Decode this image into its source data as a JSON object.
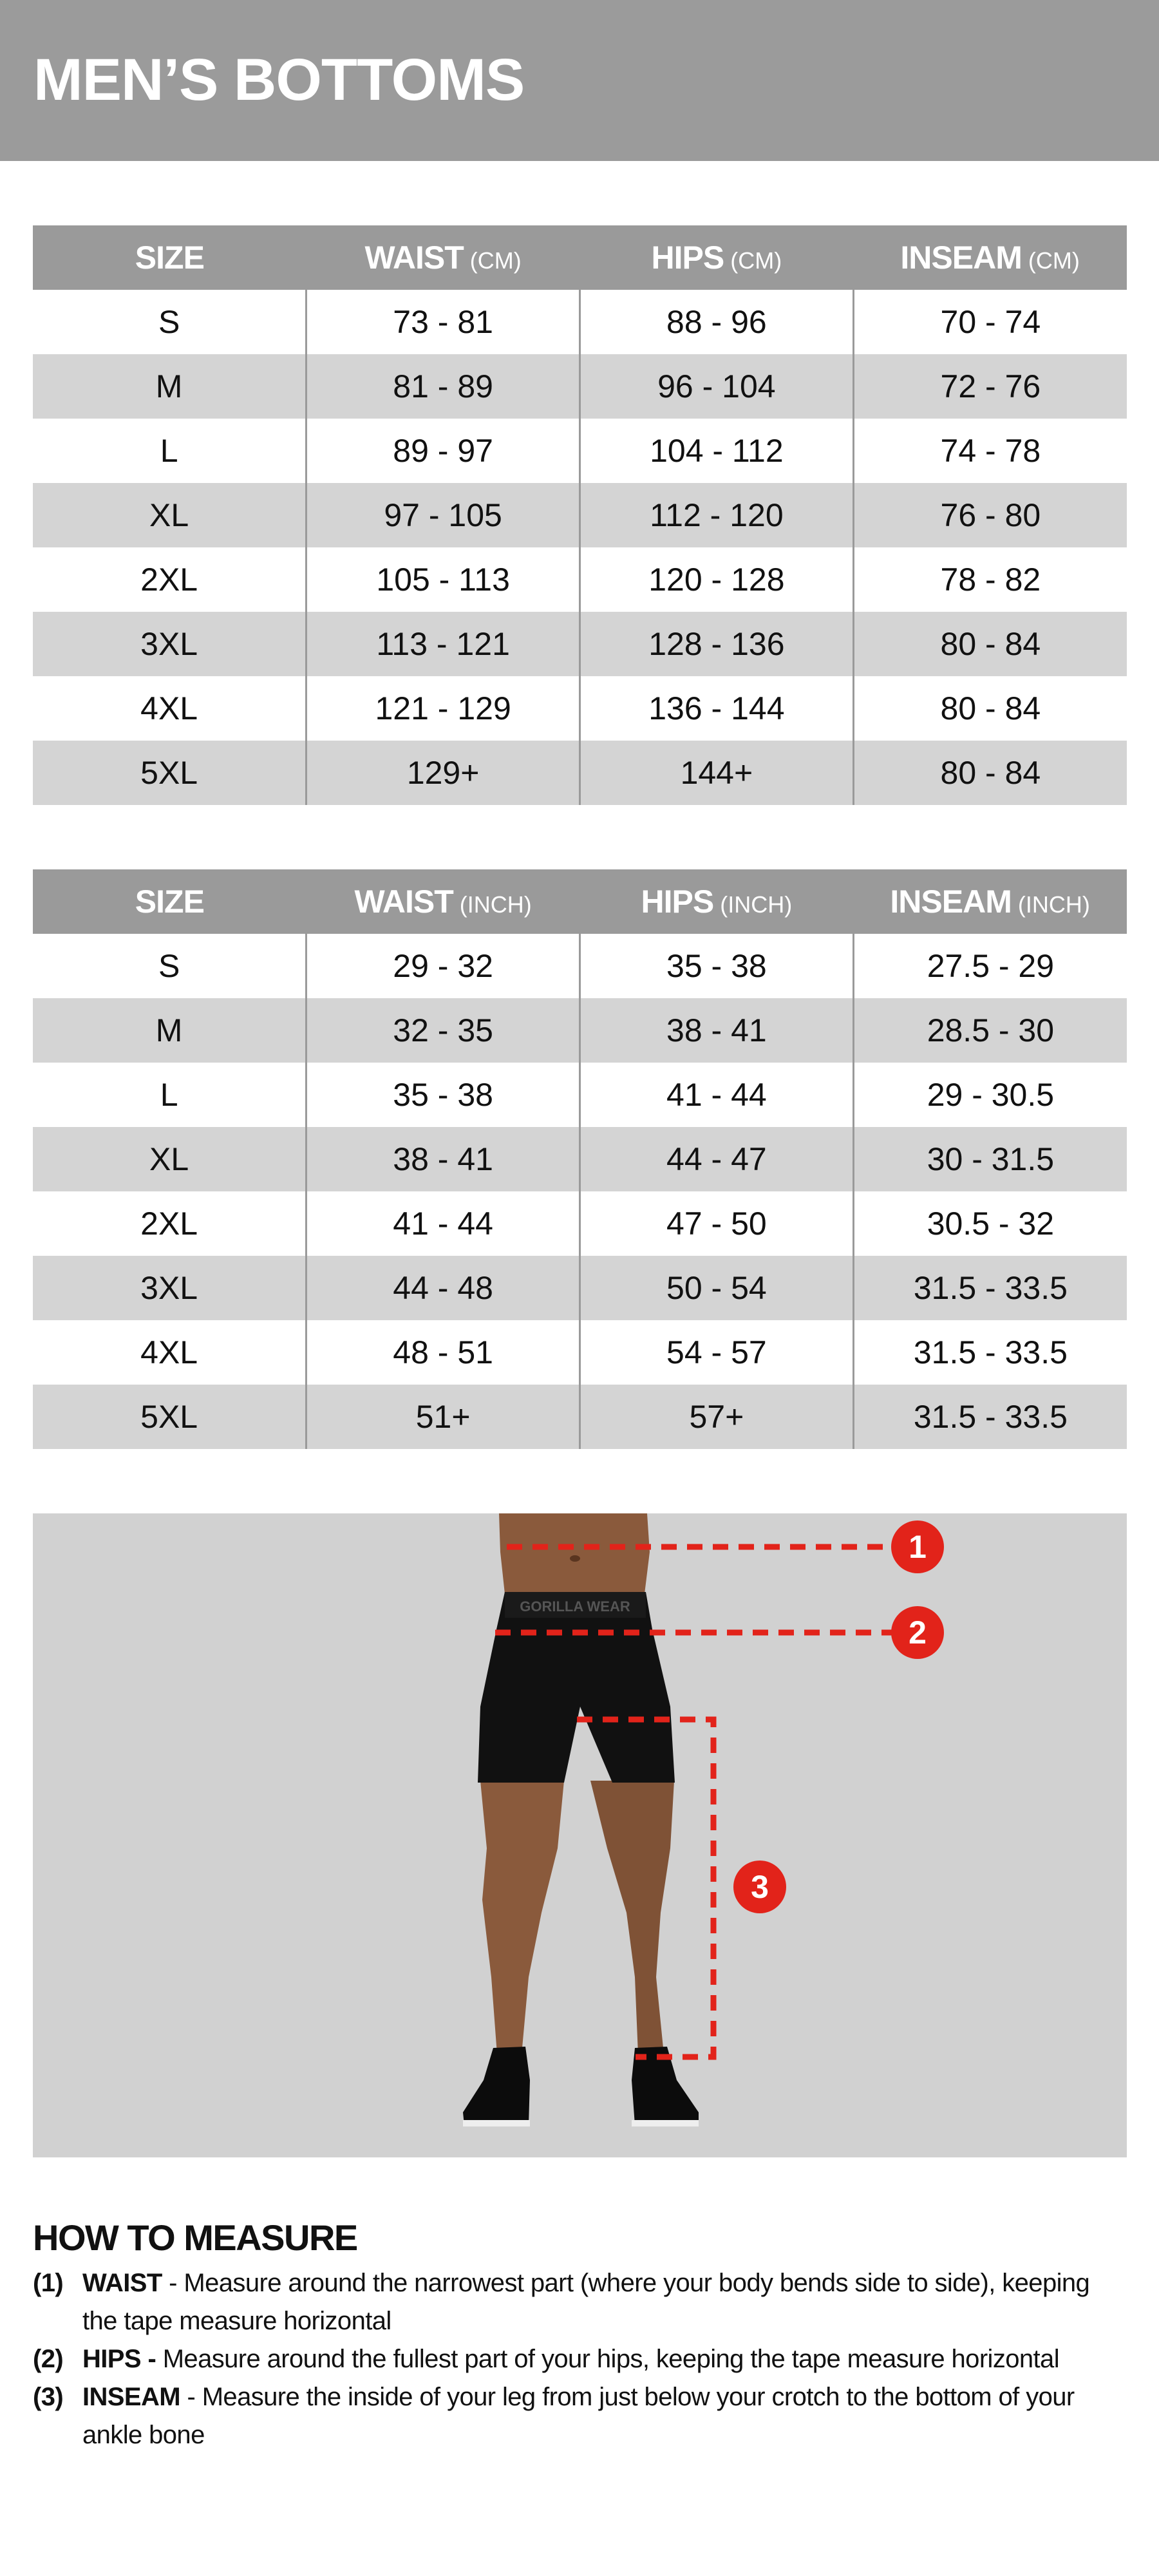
{
  "title": "MEN’S BOTTOMS",
  "tables": [
    {
      "headers": [
        {
          "label": "SIZE",
          "unit": ""
        },
        {
          "label": "WAIST",
          "unit": " (CM)"
        },
        {
          "label": "HIPS",
          "unit": " (CM)"
        },
        {
          "label": "INSEAM",
          "unit": " (CM)"
        }
      ],
      "rows": [
        [
          "S",
          "73 - 81",
          "88 - 96",
          "70 - 74"
        ],
        [
          "M",
          "81 - 89",
          "96 - 104",
          "72 - 76"
        ],
        [
          "L",
          "89 - 97",
          "104 - 112",
          "74 - 78"
        ],
        [
          "XL",
          "97 - 105",
          "112 - 120",
          "76 - 80"
        ],
        [
          "2XL",
          "105 - 113",
          "120 - 128",
          "78 - 82"
        ],
        [
          "3XL",
          "113 - 121",
          "128 - 136",
          "80 - 84"
        ],
        [
          "4XL",
          "121 - 129",
          "136 - 144",
          "80 - 84"
        ],
        [
          "5XL",
          "129+",
          "144+",
          "80 - 84"
        ]
      ]
    },
    {
      "headers": [
        {
          "label": "SIZE",
          "unit": ""
        },
        {
          "label": "WAIST",
          "unit": " (INCH)"
        },
        {
          "label": "HIPS",
          "unit": " (INCH)"
        },
        {
          "label": "INSEAM",
          "unit": " (INCH)"
        }
      ],
      "rows": [
        [
          "S",
          "29 - 32",
          "35 - 38",
          "27.5 - 29"
        ],
        [
          "M",
          "32 - 35",
          "38 - 41",
          "28.5 - 30"
        ],
        [
          "L",
          "35 - 38",
          "41 - 44",
          "29 - 30.5"
        ],
        [
          "XL",
          "38 - 41",
          "44 - 47",
          "30 - 31.5"
        ],
        [
          "2XL",
          "41 - 44",
          "47 - 50",
          "30.5 - 32"
        ],
        [
          "3XL",
          "44 - 48",
          "50 - 54",
          "31.5 - 33.5"
        ],
        [
          "4XL",
          "48 - 51",
          "54 - 57",
          "31.5 - 33.5"
        ],
        [
          "5XL",
          "51+",
          "57+",
          "31.5 - 33.5"
        ]
      ]
    }
  ],
  "figure": {
    "markers": [
      "1",
      "2",
      "3"
    ],
    "waistband_logo": "GORILLA WEAR",
    "accent_color": "#e2231a"
  },
  "how_to_measure": {
    "title": "HOW TO MEASURE",
    "steps": [
      {
        "num": "(1)",
        "term": "WAIST",
        "text": " - Measure around the narrowest part (where your body bends side to side), keeping the tape measure horizontal"
      },
      {
        "num": "(2)",
        "term": "HIPS -",
        "text": " Measure around the fullest part of your hips, keeping the tape measure horizontal"
      },
      {
        "num": "(3)",
        "term": "INSEAM",
        "text": " - Measure the inside of your leg from just below your crotch to the bottom of your ankle bone"
      }
    ]
  },
  "colors": {
    "banner": "#9b9b9b",
    "table_header": "#9a9a9a",
    "alt_row": "#d4d4d4",
    "figure_bg": "#d1d1d1"
  }
}
